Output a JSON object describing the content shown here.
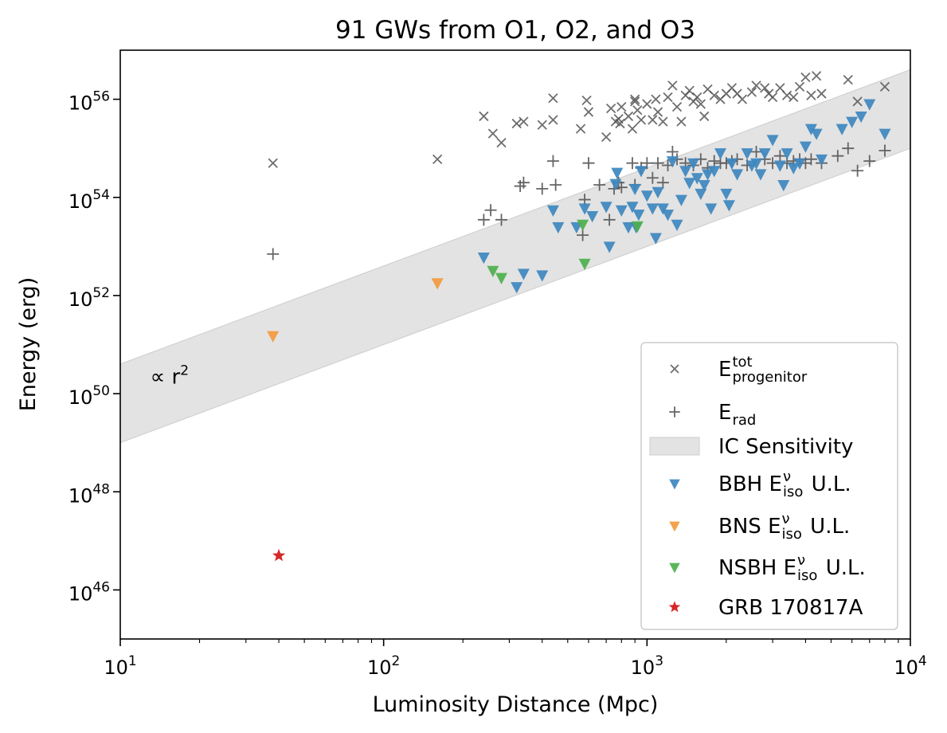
{
  "chart_data": {
    "type": "scatter",
    "title": "91 GWs from O1, O2, and O3",
    "xlabel": "Luminosity Distance (Mpc)",
    "ylabel": "Energy (erg)",
    "xscale": "log",
    "yscale": "log",
    "xlim": [
      10,
      10000
    ],
    "ylim": [
      1e+45,
      1e+57
    ],
    "x_ticks": [
      {
        "value": 10,
        "base": "10",
        "exp": "1"
      },
      {
        "value": 100,
        "base": "10",
        "exp": "2"
      },
      {
        "value": 1000,
        "base": "10",
        "exp": "3"
      },
      {
        "value": 10000,
        "base": "10",
        "exp": "4"
      }
    ],
    "y_ticks": [
      {
        "value": 1e+46,
        "base": "10",
        "exp": "46"
      },
      {
        "value": 1e+48,
        "base": "10",
        "exp": "48"
      },
      {
        "value": 1e+50,
        "base": "10",
        "exp": "50"
      },
      {
        "value": 1e+52,
        "base": "10",
        "exp": "52"
      },
      {
        "value": 1e+54,
        "base": "10",
        "exp": "54"
      },
      {
        "value": 1e+56,
        "base": "10",
        "exp": "56"
      }
    ],
    "annotation": {
      "prefix": "∝  r",
      "sup": "2",
      "x": 13,
      "y": 1.6e+50
    },
    "band": {
      "name": "IC Sensitivity",
      "color": "#e3e3e3",
      "edge": "#cccccc",
      "lower": [
        [
          10,
          1e+49
        ],
        [
          10000,
          1e+55
        ]
      ],
      "upper": [
        [
          10,
          4e+50
        ],
        [
          10000,
          4e+56
        ]
      ]
    },
    "legend": {
      "position": "lower-right",
      "entries": [
        {
          "key": "etot",
          "marker": "x",
          "color": "#555555",
          "base": "E",
          "sup": "tot",
          "sub": "progenitor",
          "suffix": ""
        },
        {
          "key": "erad",
          "marker": "plus",
          "color": "#555555",
          "base": "E",
          "sup": "",
          "sub": "rad",
          "suffix": ""
        },
        {
          "key": "band",
          "marker": "patch",
          "color": "#e3e3e3",
          "label": "IC Sensitivity"
        },
        {
          "key": "bbh",
          "marker": "tri",
          "color": "#3d87bf",
          "prefix": "BBH ",
          "base": "E",
          "sup": "ν",
          "sub": "iso",
          "suffix": " U.L."
        },
        {
          "key": "bns",
          "marker": "tri",
          "color": "#f39a3e",
          "prefix": "BNS ",
          "base": "E",
          "sup": "ν",
          "sub": "iso",
          "suffix": " U.L."
        },
        {
          "key": "nsbh",
          "marker": "tri",
          "color": "#4db04d",
          "prefix": "NSBH ",
          "base": "E",
          "sup": "ν",
          "sub": "iso",
          "suffix": " U.L."
        },
        {
          "key": "grb",
          "marker": "star",
          "color": "#d62728",
          "label": "GRB 170817A"
        }
      ]
    },
    "series": [
      {
        "name": "E_tot_progenitor",
        "marker": "x",
        "color": "#555555",
        "points": [
          [
            38,
            5e+54
          ],
          [
            160,
            6e+54
          ],
          [
            240,
            4.5e+55
          ],
          [
            260,
            2e+55
          ],
          [
            280,
            1.3e+55
          ],
          [
            320,
            3.2e+55
          ],
          [
            340,
            3.5e+55
          ],
          [
            400,
            3e+55
          ],
          [
            440,
            1.05e+56
          ],
          [
            440,
            3.8e+55
          ],
          [
            560,
            2.5e+55
          ],
          [
            590,
            9.5e+55
          ],
          [
            600,
            5.5e+55
          ],
          [
            700,
            1.7e+55
          ],
          [
            730,
            6.5e+55
          ],
          [
            760,
            3.5e+55
          ],
          [
            780,
            4e+55
          ],
          [
            790,
            3.2e+55
          ],
          [
            800,
            7e+55
          ],
          [
            850,
            4.5e+55
          ],
          [
            880,
            2.5e+55
          ],
          [
            900,
            9e+55
          ],
          [
            900,
            1e+56
          ],
          [
            920,
            6e+55
          ],
          [
            950,
            3.8e+55
          ],
          [
            1000,
            8e+55
          ],
          [
            1050,
            3.8e+55
          ],
          [
            1080,
            1e+56
          ],
          [
            1100,
            5.5e+55
          ],
          [
            1150,
            3.5e+55
          ],
          [
            1200,
            1.1e+56
          ],
          [
            1250,
            1.9e+56
          ],
          [
            1300,
            7e+55
          ],
          [
            1350,
            3.5e+55
          ],
          [
            1400,
            1.2e+56
          ],
          [
            1450,
            1.5e+56
          ],
          [
            1500,
            9e+55
          ],
          [
            1550,
            1.1e+56
          ],
          [
            1600,
            8e+55
          ],
          [
            1650,
            4.5e+55
          ],
          [
            1700,
            1.6e+56
          ],
          [
            1800,
            1.2e+56
          ],
          [
            1900,
            1e+56
          ],
          [
            2000,
            1.3e+56
          ],
          [
            2100,
            1.7e+56
          ],
          [
            2200,
            1.3e+56
          ],
          [
            2300,
            1e+56
          ],
          [
            2500,
            1.4e+56
          ],
          [
            2600,
            1.9e+56
          ],
          [
            2800,
            1.7e+56
          ],
          [
            2900,
            1.3e+56
          ],
          [
            3000,
            1.1e+56
          ],
          [
            3200,
            1.7e+56
          ],
          [
            3400,
            1.2e+56
          ],
          [
            3600,
            1.1e+56
          ],
          [
            3800,
            1.8e+56
          ],
          [
            4000,
            2.8e+56
          ],
          [
            4200,
            1.2e+56
          ],
          [
            4400,
            3e+56
          ],
          [
            4600,
            1.3e+56
          ],
          [
            5800,
            2.5e+56
          ],
          [
            6300,
            9e+55
          ],
          [
            8000,
            1.8e+56
          ]
        ]
      },
      {
        "name": "E_rad",
        "marker": "plus",
        "color": "#555555",
        "points": [
          [
            38,
            7e+52
          ],
          [
            240,
            3.5e+53
          ],
          [
            255,
            5.5e+53
          ],
          [
            280,
            3.5e+53
          ],
          [
            330,
            1.7e+54
          ],
          [
            340,
            2e+54
          ],
          [
            400,
            1.5e+54
          ],
          [
            440,
            5.5e+54
          ],
          [
            450,
            1.8e+54
          ],
          [
            570,
            1.7e+53
          ],
          [
            580,
            9e+53
          ],
          [
            600,
            5e+54
          ],
          [
            660,
            1.8e+54
          ],
          [
            720,
            3.5e+53
          ],
          [
            750,
            1.5e+54
          ],
          [
            780,
            2e+54
          ],
          [
            800,
            1.6e+54
          ],
          [
            880,
            5e+54
          ],
          [
            900,
            1.8e+54
          ],
          [
            950,
            4e+54
          ],
          [
            1000,
            5e+54
          ],
          [
            1050,
            2.5e+54
          ],
          [
            1100,
            5e+54
          ],
          [
            1150,
            2e+54
          ],
          [
            1200,
            4.5e+54
          ],
          [
            1250,
            8.5e+54
          ],
          [
            1300,
            6e+54
          ],
          [
            1400,
            5e+54
          ],
          [
            1500,
            4.5e+54
          ],
          [
            1600,
            6e+54
          ],
          [
            1700,
            4e+54
          ],
          [
            1800,
            5.5e+54
          ],
          [
            1900,
            5e+54
          ],
          [
            2000,
            5e+54
          ],
          [
            2100,
            5.5e+54
          ],
          [
            2200,
            6e+54
          ],
          [
            2400,
            4.5e+54
          ],
          [
            2600,
            8.5e+54
          ],
          [
            2800,
            6e+54
          ],
          [
            3000,
            5e+54
          ],
          [
            3200,
            7e+54
          ],
          [
            3400,
            5e+54
          ],
          [
            3600,
            5.5e+54
          ],
          [
            3800,
            6e+54
          ],
          [
            4000,
            5e+54
          ],
          [
            4200,
            6e+54
          ],
          [
            4600,
            5e+54
          ],
          [
            5300,
            7e+54
          ],
          [
            5800,
            1e+55
          ],
          [
            6300,
            3.5e+54
          ],
          [
            7000,
            5.5e+54
          ],
          [
            8000,
            9e+54
          ]
        ]
      },
      {
        "name": "BBH E_iso U.L.",
        "marker": "tri",
        "color": "#3d87bf",
        "points": [
          [
            240,
            6e+52
          ],
          [
            320,
            1.5e+52
          ],
          [
            340,
            2.8e+52
          ],
          [
            400,
            2.6e+52
          ],
          [
            440,
            5.5e+53
          ],
          [
            460,
            2.5e+53
          ],
          [
            540,
            2.5e+53
          ],
          [
            580,
            6e+53
          ],
          [
            620,
            4.2e+53
          ],
          [
            700,
            6.5e+53
          ],
          [
            720,
            1e+53
          ],
          [
            760,
            1.9e+54
          ],
          [
            770,
            3.2e+54
          ],
          [
            800,
            5.5e+53
          ],
          [
            850,
            2.5e+53
          ],
          [
            880,
            6.5e+53
          ],
          [
            900,
            1.5e+54
          ],
          [
            910,
            2.5e+53
          ],
          [
            930,
            4.5e+53
          ],
          [
            950,
            3.5e+54
          ],
          [
            1000,
            1.1e+54
          ],
          [
            1050,
            6e+53
          ],
          [
            1080,
            1.5e+53
          ],
          [
            1100,
            1.3e+54
          ],
          [
            1150,
            6e+53
          ],
          [
            1200,
            4.5e+53
          ],
          [
            1250,
            5.5e+54
          ],
          [
            1300,
            2.8e+53
          ],
          [
            1350,
            9e+53
          ],
          [
            1400,
            3.5e+54
          ],
          [
            1450,
            2e+54
          ],
          [
            1500,
            5e+54
          ],
          [
            1550,
            2.5e+54
          ],
          [
            1600,
            1.2e+54
          ],
          [
            1650,
            1.8e+54
          ],
          [
            1700,
            3e+54
          ],
          [
            1750,
            6e+53
          ],
          [
            1800,
            3.5e+54
          ],
          [
            1900,
            8e+54
          ],
          [
            2000,
            1.2e+54
          ],
          [
            2050,
            7e+53
          ],
          [
            2100,
            5e+54
          ],
          [
            2200,
            3e+54
          ],
          [
            2400,
            8e+54
          ],
          [
            2500,
            4.5e+54
          ],
          [
            2600,
            5e+54
          ],
          [
            2700,
            3e+54
          ],
          [
            2800,
            8e+54
          ],
          [
            3000,
            1.5e+55
          ],
          [
            3200,
            4.5e+54
          ],
          [
            3300,
            1.8e+54
          ],
          [
            3400,
            8e+54
          ],
          [
            3600,
            4e+54
          ],
          [
            3800,
            5e+54
          ],
          [
            4000,
            1.1e+55
          ],
          [
            4200,
            2.5e+55
          ],
          [
            4400,
            2e+55
          ],
          [
            4600,
            6e+54
          ],
          [
            5500,
            2.5e+55
          ],
          [
            6000,
            3.5e+55
          ],
          [
            6500,
            4.5e+55
          ],
          [
            7000,
            8e+55
          ],
          [
            8000,
            2e+55
          ]
        ]
      },
      {
        "name": "BNS E_iso U.L.",
        "marker": "tri",
        "color": "#f39a3e",
        "points": [
          [
            38,
            1.5e+51
          ],
          [
            160,
            1.8e+52
          ]
        ]
      },
      {
        "name": "NSBH E_iso U.L.",
        "marker": "tri",
        "color": "#4db04d",
        "points": [
          [
            260,
            3.2e+52
          ],
          [
            280,
            2.3e+52
          ],
          [
            570,
            2.8e+53
          ],
          [
            580,
            4.5e+52
          ],
          [
            920,
            2.6e+53
          ]
        ]
      },
      {
        "name": "GRB 170817A",
        "marker": "star",
        "color": "#d62728",
        "points": [
          [
            40,
            5e+46
          ]
        ]
      }
    ]
  }
}
